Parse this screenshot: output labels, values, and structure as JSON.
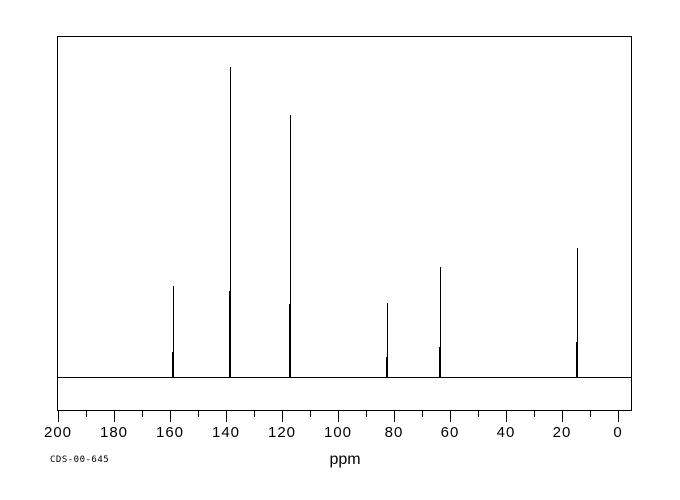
{
  "footer": {
    "id_label": "CDS-00-645"
  },
  "chart_data": {
    "type": "line",
    "description": "13C NMR spectrum with sharp singlet peaks on a flat baseline",
    "title": "",
    "xlabel": "ppm",
    "ylabel": "",
    "grid": false,
    "legend": false,
    "x_axis": {
      "min": 0,
      "max": 200,
      "inverted": true,
      "major_tick_step": 20,
      "minor_tick_step": 10,
      "tick_labels": [
        "200",
        "180",
        "160",
        "140",
        "120",
        "100",
        "80",
        "60",
        "40",
        "20",
        "0"
      ]
    },
    "peaks": [
      {
        "ppm": 159.1,
        "intensity": 0.296
      },
      {
        "ppm": 138.6,
        "intensity": 1.0
      },
      {
        "ppm": 117.0,
        "intensity": 0.846
      },
      {
        "ppm": 82.5,
        "intensity": 0.241
      },
      {
        "ppm": 63.7,
        "intensity": 0.357
      },
      {
        "ppm": 14.8,
        "intensity": 0.418
      }
    ],
    "colors": {
      "trace": "#000000",
      "frame": "#000000",
      "background": "#ffffff"
    }
  }
}
